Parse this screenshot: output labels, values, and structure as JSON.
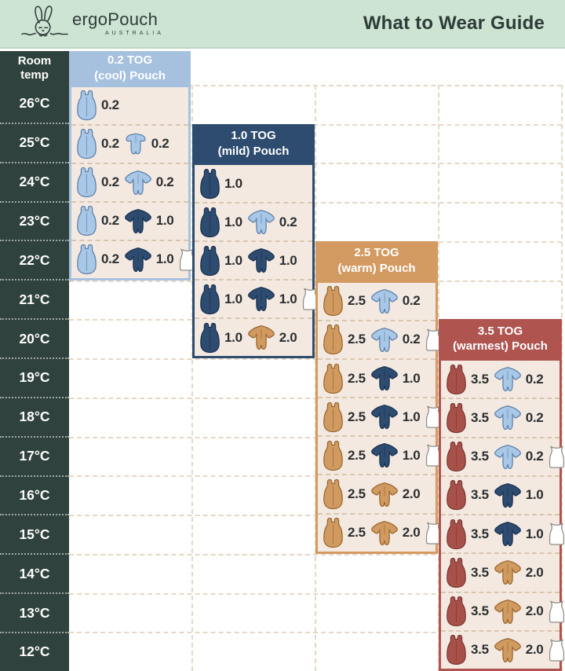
{
  "header": {
    "brand": "ergoPouch",
    "brand_sub": "AUSTRALIA",
    "title": "What to Wear Guide"
  },
  "room_temp_label": "Room temp",
  "colors": {
    "topbar_bg": "#cde4d3",
    "temp_column_bg": "#30423d",
    "panel_body_bg": "#f3e9e0",
    "grid_dash": "#e7d7c5",
    "tog_text": "#2b2e30",
    "themes": {
      "lightblue": {
        "panel": "#a5c1de",
        "fill": "#a9c7e6",
        "stroke": "#5c80ab"
      },
      "navy": {
        "panel": "#2e4c70",
        "fill": "#2e4c70",
        "stroke": "#1a3050"
      },
      "tan": {
        "panel": "#d39b62",
        "fill": "#d09a60",
        "stroke": "#99672f"
      },
      "red": {
        "panel": "#b05450",
        "fill": "#a8514a",
        "stroke": "#7b3731"
      },
      "singlet": {
        "fill": "#ffffff",
        "stroke": "#8e8d86"
      }
    }
  },
  "chart_data": {
    "type": "table",
    "row_label": "Room temp",
    "temps": [
      "26°C",
      "25°C",
      "24°C",
      "23°C",
      "22°C",
      "21°C",
      "20°C",
      "19°C",
      "18°C",
      "17°C",
      "16°C",
      "15°C",
      "14°C",
      "13°C",
      "12°C"
    ],
    "panels": [
      {
        "id": "tog-0-2",
        "title_line1": "0.2 TOG",
        "title_line2": "(cool) Pouch",
        "theme": "lightblue",
        "rows": [
          {
            "temp": "26°C",
            "items": [
              {
                "icon": "pouch",
                "theme": "lightblue",
                "tog": "0.2"
              }
            ]
          },
          {
            "temp": "25°C",
            "items": [
              {
                "icon": "pouch",
                "theme": "lightblue",
                "tog": "0.2"
              },
              {
                "icon": "romper",
                "theme": "lightblue",
                "tog": "0.2"
              }
            ]
          },
          {
            "temp": "24°C",
            "items": [
              {
                "icon": "pouch",
                "theme": "lightblue",
                "tog": "0.2"
              },
              {
                "icon": "onesie",
                "theme": "lightblue",
                "tog": "0.2"
              }
            ]
          },
          {
            "temp": "23°C",
            "items": [
              {
                "icon": "pouch",
                "theme": "lightblue",
                "tog": "0.2"
              },
              {
                "icon": "onesie",
                "theme": "navy",
                "tog": "1.0"
              }
            ]
          },
          {
            "temp": "22°C",
            "items": [
              {
                "icon": "pouch",
                "theme": "lightblue",
                "tog": "0.2"
              },
              {
                "icon": "onesie",
                "theme": "navy",
                "tog": "1.0"
              },
              {
                "icon": "singlet"
              }
            ]
          }
        ]
      },
      {
        "id": "tog-1-0",
        "title_line1": "1.0 TOG",
        "title_line2": "(mild) Pouch",
        "theme": "navy",
        "rows": [
          {
            "temp": "24°C",
            "items": [
              {
                "icon": "pouch",
                "theme": "navy",
                "tog": "1.0"
              }
            ]
          },
          {
            "temp": "23°C",
            "items": [
              {
                "icon": "pouch",
                "theme": "navy",
                "tog": "1.0"
              },
              {
                "icon": "onesie",
                "theme": "lightblue",
                "tog": "0.2"
              }
            ]
          },
          {
            "temp": "22°C",
            "items": [
              {
                "icon": "pouch",
                "theme": "navy",
                "tog": "1.0"
              },
              {
                "icon": "onesie",
                "theme": "navy",
                "tog": "1.0"
              }
            ]
          },
          {
            "temp": "21°C",
            "items": [
              {
                "icon": "pouch",
                "theme": "navy",
                "tog": "1.0"
              },
              {
                "icon": "onesie",
                "theme": "navy",
                "tog": "1.0"
              },
              {
                "icon": "singlet"
              }
            ]
          },
          {
            "temp": "20°C",
            "items": [
              {
                "icon": "pouch",
                "theme": "navy",
                "tog": "1.0"
              },
              {
                "icon": "onesie",
                "theme": "tan",
                "tog": "2.0"
              }
            ]
          }
        ]
      },
      {
        "id": "tog-2-5",
        "title_line1": "2.5 TOG",
        "title_line2": "(warm) Pouch",
        "theme": "tan",
        "rows": [
          {
            "temp": "21°C",
            "items": [
              {
                "icon": "pouch",
                "theme": "tan",
                "tog": "2.5"
              },
              {
                "icon": "onesie",
                "theme": "lightblue",
                "tog": "0.2"
              }
            ]
          },
          {
            "temp": "20°C",
            "items": [
              {
                "icon": "pouch",
                "theme": "tan",
                "tog": "2.5"
              },
              {
                "icon": "onesie",
                "theme": "lightblue",
                "tog": "0.2"
              },
              {
                "icon": "singlet"
              }
            ]
          },
          {
            "temp": "19°C",
            "items": [
              {
                "icon": "pouch",
                "theme": "tan",
                "tog": "2.5"
              },
              {
                "icon": "onesie",
                "theme": "navy",
                "tog": "1.0"
              }
            ]
          },
          {
            "temp": "18°C",
            "items": [
              {
                "icon": "pouch",
                "theme": "tan",
                "tog": "2.5"
              },
              {
                "icon": "onesie",
                "theme": "navy",
                "tog": "1.0"
              },
              {
                "icon": "singlet"
              }
            ]
          },
          {
            "temp": "17°C",
            "items": [
              {
                "icon": "pouch",
                "theme": "tan",
                "tog": "2.5"
              },
              {
                "icon": "onesie",
                "theme": "navy",
                "tog": "1.0"
              },
              {
                "icon": "singlet"
              }
            ]
          },
          {
            "temp": "16°C",
            "items": [
              {
                "icon": "pouch",
                "theme": "tan",
                "tog": "2.5"
              },
              {
                "icon": "onesie",
                "theme": "tan",
                "tog": "2.0"
              }
            ]
          },
          {
            "temp": "15°C",
            "items": [
              {
                "icon": "pouch",
                "theme": "tan",
                "tog": "2.5"
              },
              {
                "icon": "onesie",
                "theme": "tan",
                "tog": "2.0"
              },
              {
                "icon": "singlet"
              }
            ]
          }
        ]
      },
      {
        "id": "tog-3-5",
        "title_line1": "3.5 TOG",
        "title_line2": "(warmest) Pouch",
        "theme": "red",
        "rows": [
          {
            "temp": "19°C",
            "items": [
              {
                "icon": "pouch",
                "theme": "red",
                "tog": "3.5"
              },
              {
                "icon": "onesie",
                "theme": "lightblue",
                "tog": "0.2"
              }
            ]
          },
          {
            "temp": "18°C",
            "items": [
              {
                "icon": "pouch",
                "theme": "red",
                "tog": "3.5"
              },
              {
                "icon": "onesie",
                "theme": "lightblue",
                "tog": "0.2"
              }
            ]
          },
          {
            "temp": "17°C",
            "items": [
              {
                "icon": "pouch",
                "theme": "red",
                "tog": "3.5"
              },
              {
                "icon": "onesie",
                "theme": "lightblue",
                "tog": "0.2"
              },
              {
                "icon": "singlet"
              }
            ]
          },
          {
            "temp": "16°C",
            "items": [
              {
                "icon": "pouch",
                "theme": "red",
                "tog": "3.5"
              },
              {
                "icon": "onesie",
                "theme": "navy",
                "tog": "1.0"
              }
            ]
          },
          {
            "temp": "15°C",
            "items": [
              {
                "icon": "pouch",
                "theme": "red",
                "tog": "3.5"
              },
              {
                "icon": "onesie",
                "theme": "navy",
                "tog": "1.0"
              },
              {
                "icon": "singlet"
              }
            ]
          },
          {
            "temp": "14°C",
            "items": [
              {
                "icon": "pouch",
                "theme": "red",
                "tog": "3.5"
              },
              {
                "icon": "onesie",
                "theme": "tan",
                "tog": "2.0"
              }
            ]
          },
          {
            "temp": "13°C",
            "items": [
              {
                "icon": "pouch",
                "theme": "red",
                "tog": "3.5"
              },
              {
                "icon": "onesie",
                "theme": "tan",
                "tog": "2.0"
              },
              {
                "icon": "singlet"
              }
            ]
          },
          {
            "temp": "12°C",
            "items": [
              {
                "icon": "pouch",
                "theme": "red",
                "tog": "3.5"
              },
              {
                "icon": "onesie",
                "theme": "tan",
                "tog": "2.0"
              },
              {
                "icon": "singlet"
              }
            ]
          }
        ]
      }
    ]
  }
}
